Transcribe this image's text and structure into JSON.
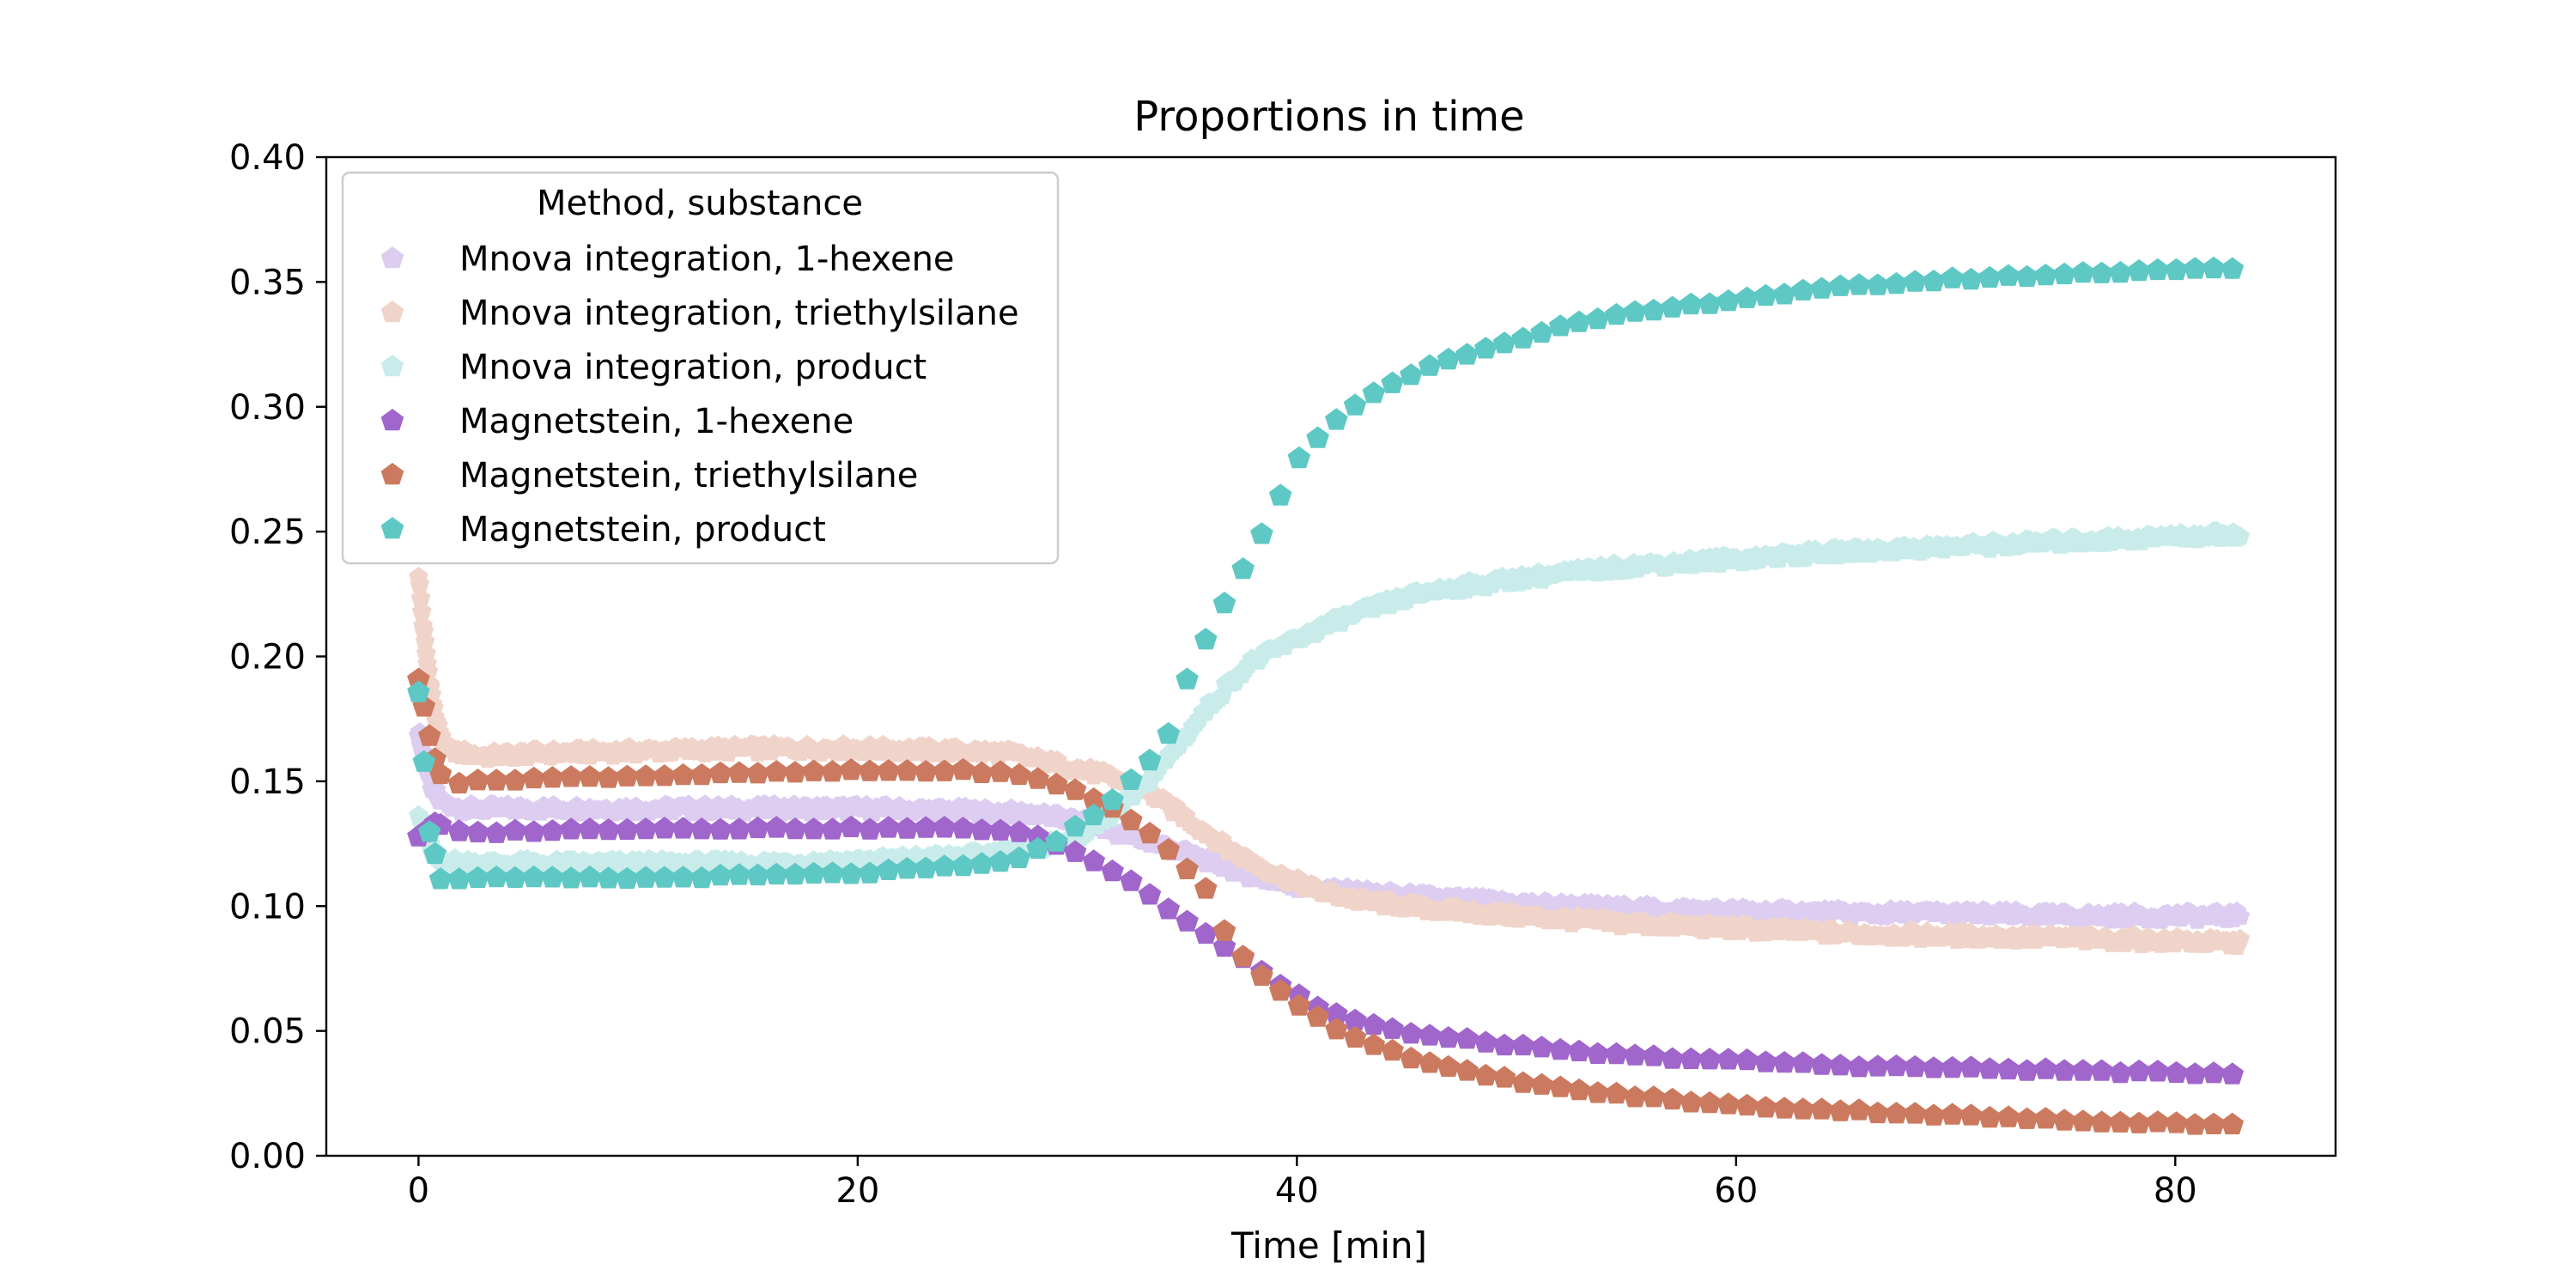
{
  "chart_data": {
    "type": "scatter",
    "title": "Proportions in time",
    "xlabel": "Time [min]",
    "ylabel": "",
    "xlim": [
      -4.2,
      87.3
    ],
    "ylim": [
      0.0,
      0.4
    ],
    "x_ticks": [
      0,
      20,
      40,
      60,
      80
    ],
    "x_tick_labels": [
      "0",
      "20",
      "40",
      "60",
      "80"
    ],
    "y_ticks": [
      0.0,
      0.05,
      0.1,
      0.15,
      0.2,
      0.25,
      0.3,
      0.35,
      0.4
    ],
    "y_tick_labels": [
      "0.00",
      "0.05",
      "0.10",
      "0.15",
      "0.20",
      "0.25",
      "0.30",
      "0.35",
      "0.40"
    ],
    "grid": false,
    "marker": "pentagon",
    "legend": {
      "title": "Method, substance",
      "position": "top-left"
    },
    "series": [
      {
        "name": "Mnova integration, 1-hexene",
        "color": "#ddcdf0",
        "dense": true,
        "points": [
          [
            0,
            0.17
          ],
          [
            0.3,
            0.158
          ],
          [
            0.6,
            0.148
          ],
          [
            1,
            0.142
          ],
          [
            2,
            0.139
          ],
          [
            5,
            0.139
          ],
          [
            10,
            0.139
          ],
          [
            15,
            0.139
          ],
          [
            20,
            0.139
          ],
          [
            25,
            0.138
          ],
          [
            28,
            0.137
          ],
          [
            30,
            0.134
          ],
          [
            32,
            0.129
          ],
          [
            34,
            0.124
          ],
          [
            36,
            0.118
          ],
          [
            38,
            0.112
          ],
          [
            40,
            0.108
          ],
          [
            42,
            0.106
          ],
          [
            45,
            0.104
          ],
          [
            50,
            0.101
          ],
          [
            55,
            0.099
          ],
          [
            60,
            0.098
          ],
          [
            65,
            0.097
          ],
          [
            70,
            0.097
          ],
          [
            75,
            0.096
          ],
          [
            80,
            0.096
          ],
          [
            83,
            0.096
          ]
        ]
      },
      {
        "name": "Mnova integration, triethylsilane",
        "color": "#f0d4ca",
        "dense": true,
        "points": [
          [
            0,
            0.233
          ],
          [
            0.2,
            0.213
          ],
          [
            0.4,
            0.197
          ],
          [
            0.7,
            0.178
          ],
          [
            1,
            0.167
          ],
          [
            1.5,
            0.162
          ],
          [
            3,
            0.16
          ],
          [
            5,
            0.161
          ],
          [
            10,
            0.162
          ],
          [
            15,
            0.163
          ],
          [
            20,
            0.163
          ],
          [
            25,
            0.162
          ],
          [
            27,
            0.161
          ],
          [
            29,
            0.157
          ],
          [
            31,
            0.153
          ],
          [
            33,
            0.147
          ],
          [
            35,
            0.135
          ],
          [
            37,
            0.122
          ],
          [
            39,
            0.113
          ],
          [
            41,
            0.106
          ],
          [
            43,
            0.102
          ],
          [
            46,
            0.099
          ],
          [
            50,
            0.096
          ],
          [
            55,
            0.093
          ],
          [
            60,
            0.091
          ],
          [
            65,
            0.089
          ],
          [
            70,
            0.088
          ],
          [
            75,
            0.087
          ],
          [
            80,
            0.086
          ],
          [
            83,
            0.085
          ]
        ]
      },
      {
        "name": "Mnova integration, product",
        "color": "#c9eceb",
        "dense": true,
        "points": [
          [
            0,
            0.138
          ],
          [
            0.3,
            0.13
          ],
          [
            0.6,
            0.122
          ],
          [
            1,
            0.118
          ],
          [
            3,
            0.117
          ],
          [
            5,
            0.117
          ],
          [
            10,
            0.117
          ],
          [
            15,
            0.117
          ],
          [
            20,
            0.118
          ],
          [
            25,
            0.12
          ],
          [
            28,
            0.123
          ],
          [
            30,
            0.128
          ],
          [
            31,
            0.133
          ],
          [
            32,
            0.14
          ],
          [
            33,
            0.148
          ],
          [
            34,
            0.158
          ],
          [
            35,
            0.169
          ],
          [
            36,
            0.18
          ],
          [
            37,
            0.19
          ],
          [
            38,
            0.198
          ],
          [
            40,
            0.207
          ],
          [
            42,
            0.215
          ],
          [
            44,
            0.221
          ],
          [
            46,
            0.226
          ],
          [
            50,
            0.231
          ],
          [
            55,
            0.236
          ],
          [
            60,
            0.239
          ],
          [
            65,
            0.242
          ],
          [
            70,
            0.244
          ],
          [
            75,
            0.246
          ],
          [
            80,
            0.248
          ],
          [
            83,
            0.249
          ]
        ]
      },
      {
        "name": "Magnetstein, 1-hexene",
        "color": "#a066cc",
        "dense": false,
        "points": [
          [
            0,
            0.128
          ],
          [
            0.8,
            0.133
          ],
          [
            2,
            0.129
          ],
          [
            5,
            0.13
          ],
          [
            10,
            0.131
          ],
          [
            15,
            0.131
          ],
          [
            20,
            0.131
          ],
          [
            25,
            0.131
          ],
          [
            27,
            0.13
          ],
          [
            28,
            0.128
          ],
          [
            29,
            0.125
          ],
          [
            30,
            0.121
          ],
          [
            31,
            0.117
          ],
          [
            32,
            0.112
          ],
          [
            33,
            0.107
          ],
          [
            34,
            0.1
          ],
          [
            35,
            0.094
          ],
          [
            36,
            0.088
          ],
          [
            37,
            0.082
          ],
          [
            38,
            0.077
          ],
          [
            39,
            0.069
          ],
          [
            40,
            0.065
          ],
          [
            41,
            0.059
          ],
          [
            42,
            0.056
          ],
          [
            43,
            0.053
          ],
          [
            44,
            0.051
          ],
          [
            46,
            0.048
          ],
          [
            48,
            0.046
          ],
          [
            50,
            0.044
          ],
          [
            52,
            0.042
          ],
          [
            55,
            0.04
          ],
          [
            60,
            0.038
          ],
          [
            65,
            0.036
          ],
          [
            70,
            0.035
          ],
          [
            75,
            0.034
          ],
          [
            80,
            0.033
          ],
          [
            83,
            0.033
          ]
        ]
      },
      {
        "name": "Magnetstein, triethylsilane",
        "color": "#cc7a5f",
        "dense": false,
        "points": [
          [
            0,
            0.191
          ],
          [
            0.5,
            0.168
          ],
          [
            0.9,
            0.154
          ],
          [
            1.5,
            0.149
          ],
          [
            3,
            0.15
          ],
          [
            5,
            0.151
          ],
          [
            10,
            0.152
          ],
          [
            15,
            0.153
          ],
          [
            20,
            0.154
          ],
          [
            25,
            0.154
          ],
          [
            27,
            0.153
          ],
          [
            28,
            0.151
          ],
          [
            29,
            0.149
          ],
          [
            30,
            0.146
          ],
          [
            31,
            0.142
          ],
          [
            32,
            0.137
          ],
          [
            33,
            0.131
          ],
          [
            34,
            0.124
          ],
          [
            35,
            0.115
          ],
          [
            36,
            0.105
          ],
          [
            36.5,
            0.093
          ],
          [
            37,
            0.085
          ],
          [
            38,
            0.075
          ],
          [
            39,
            0.068
          ],
          [
            40,
            0.061
          ],
          [
            41,
            0.055
          ],
          [
            42,
            0.05
          ],
          [
            43,
            0.046
          ],
          [
            44,
            0.043
          ],
          [
            46,
            0.037
          ],
          [
            48,
            0.033
          ],
          [
            50,
            0.03
          ],
          [
            52,
            0.027
          ],
          [
            55,
            0.024
          ],
          [
            60,
            0.02
          ],
          [
            65,
            0.018
          ],
          [
            70,
            0.016
          ],
          [
            75,
            0.014
          ],
          [
            80,
            0.013
          ],
          [
            83,
            0.012
          ]
        ]
      },
      {
        "name": "Magnetstein, product",
        "color": "#5ec8c4",
        "dense": false,
        "points": [
          [
            0,
            0.186
          ],
          [
            0.5,
            0.13
          ],
          [
            1,
            0.111
          ],
          [
            2,
            0.111
          ],
          [
            5,
            0.111
          ],
          [
            10,
            0.111
          ],
          [
            15,
            0.112
          ],
          [
            20,
            0.113
          ],
          [
            25,
            0.116
          ],
          [
            27,
            0.118
          ],
          [
            28,
            0.122
          ],
          [
            29,
            0.125
          ],
          [
            30,
            0.132
          ],
          [
            31,
            0.138
          ],
          [
            32,
            0.146
          ],
          [
            33,
            0.155
          ],
          [
            34,
            0.166
          ],
          [
            34.5,
            0.177
          ],
          [
            35,
            0.191
          ],
          [
            36,
            0.209
          ],
          [
            37,
            0.226
          ],
          [
            38,
            0.243
          ],
          [
            39,
            0.258
          ],
          [
            39.5,
            0.27
          ],
          [
            40,
            0.278
          ],
          [
            41,
            0.288
          ],
          [
            42,
            0.296
          ],
          [
            43,
            0.303
          ],
          [
            44,
            0.308
          ],
          [
            46,
            0.316
          ],
          [
            48,
            0.322
          ],
          [
            50,
            0.327
          ],
          [
            52,
            0.332
          ],
          [
            55,
            0.337
          ],
          [
            60,
            0.343
          ],
          [
            65,
            0.348
          ],
          [
            70,
            0.351
          ],
          [
            75,
            0.353
          ],
          [
            80,
            0.355
          ],
          [
            83,
            0.355
          ]
        ]
      }
    ]
  }
}
